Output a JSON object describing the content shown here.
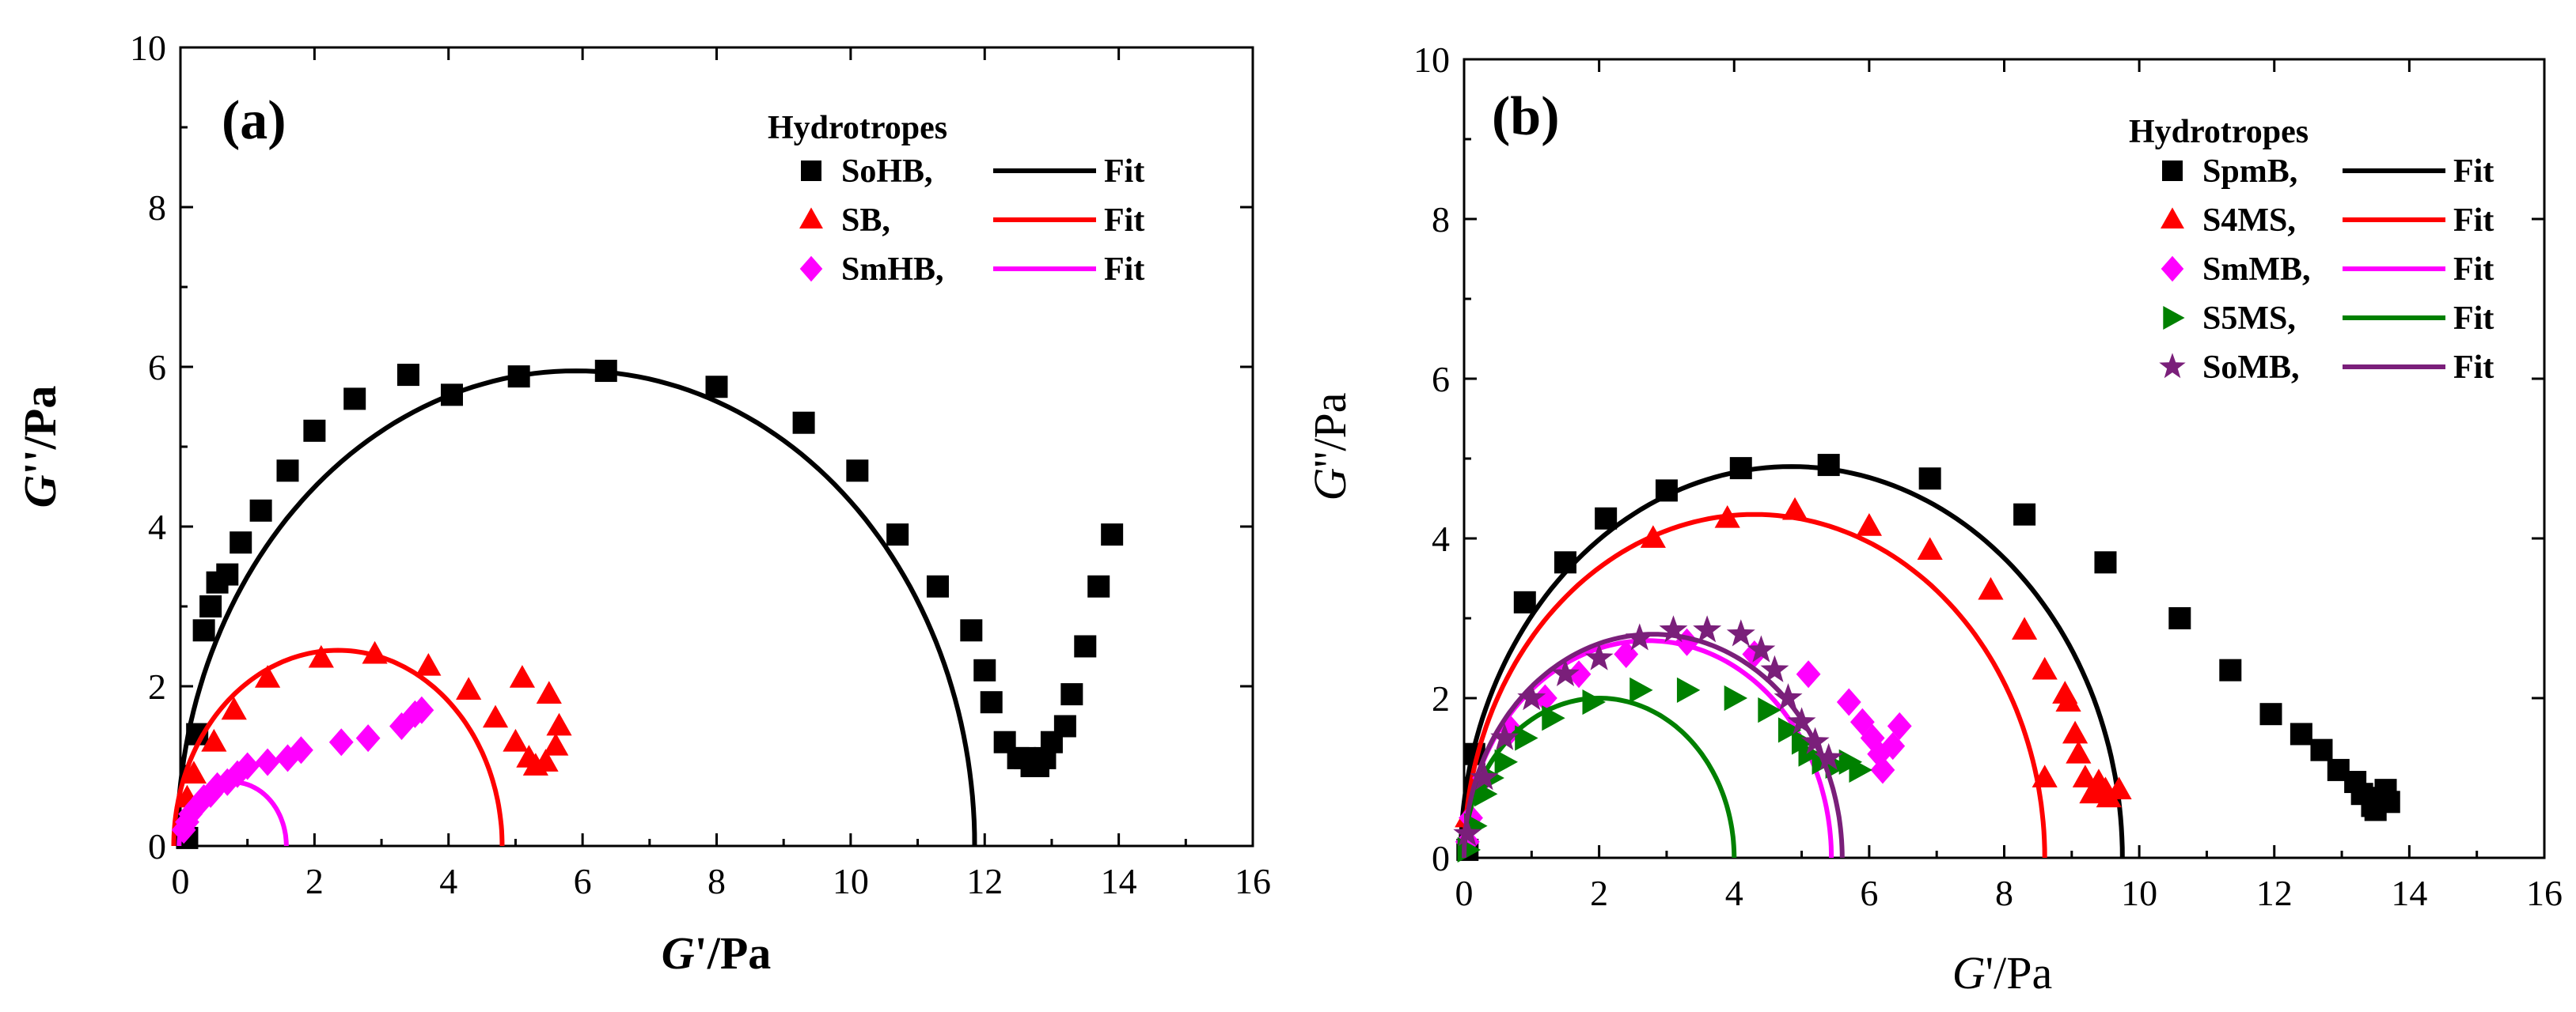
{
  "chart_data": [
    {
      "panel": "(a)",
      "type": "scatter",
      "xlabel": {
        "italic": "G",
        "rest": "'/Pa"
      },
      "ylabel": {
        "italic": "G",
        "rest": "''/Pa"
      },
      "xlim": [
        0,
        16
      ],
      "ylim": [
        0,
        10
      ],
      "xticks": [
        "0",
        "2",
        "4",
        "6",
        "8",
        "10",
        "12",
        "14",
        "16"
      ],
      "yticks": [
        "0",
        "2",
        "4",
        "6",
        "8",
        "10"
      ],
      "legend_title": "Hydrotropes",
      "legend_position": "top-right",
      "fit_label": "Fit",
      "series": [
        {
          "name": "SoHB,",
          "marker": "square",
          "color": "#000000",
          "points": [
            [
              0.1,
              0.1
            ],
            [
              0.25,
              1.4
            ],
            [
              0.35,
              2.7
            ],
            [
              0.45,
              3.0
            ],
            [
              0.55,
              3.3
            ],
            [
              0.7,
              3.4
            ],
            [
              0.9,
              3.8
            ],
            [
              1.2,
              4.2
            ],
            [
              1.6,
              4.7
            ],
            [
              2.0,
              5.2
            ],
            [
              2.6,
              5.6
            ],
            [
              3.4,
              5.9
            ],
            [
              6.35,
              5.95
            ],
            [
              8.0,
              5.75
            ],
            [
              9.3,
              5.3
            ],
            [
              10.1,
              4.7
            ],
            [
              10.7,
              3.9
            ],
            [
              11.3,
              3.25
            ],
            [
              11.8,
              2.7
            ],
            [
              12.0,
              2.2
            ],
            [
              12.1,
              1.8
            ],
            [
              12.3,
              1.3
            ],
            [
              12.5,
              1.1
            ],
            [
              12.6,
              1.1
            ],
            [
              12.7,
              1.0
            ],
            [
              12.8,
              1.0
            ],
            [
              12.9,
              1.1
            ],
            [
              13.0,
              1.3
            ],
            [
              13.2,
              1.5
            ],
            [
              13.3,
              1.9
            ],
            [
              13.5,
              2.5
            ],
            [
              13.7,
              3.25
            ],
            [
              13.9,
              3.9
            ],
            [
              4.05,
              5.65
            ],
            [
              5.05,
              5.88
            ]
          ],
          "fit": {
            "center": 5.9,
            "radius": 5.95,
            "color": "#000000"
          }
        },
        {
          "name": "SB,",
          "marker": "triangle",
          "color": "#ff0000",
          "points": [
            [
              0.1,
              0.6
            ],
            [
              0.2,
              0.9
            ],
            [
              0.5,
              1.3
            ],
            [
              0.8,
              1.7
            ],
            [
              1.3,
              2.1
            ],
            [
              2.1,
              2.35
            ],
            [
              2.9,
              2.4
            ],
            [
              3.7,
              2.25
            ],
            [
              4.3,
              1.95
            ],
            [
              4.7,
              1.6
            ],
            [
              5.0,
              1.3
            ],
            [
              5.1,
              2.1
            ],
            [
              5.2,
              1.1
            ],
            [
              5.3,
              1.0
            ],
            [
              5.45,
              1.05
            ],
            [
              5.5,
              1.9
            ],
            [
              5.6,
              1.25
            ],
            [
              5.65,
              1.5
            ]
          ],
          "fit": {
            "center": 2.35,
            "radius": 2.45,
            "color": "#ff0000"
          }
        },
        {
          "name": "SmHB,",
          "marker": "diamond",
          "color": "#ff00ff",
          "points": [
            [
              0.05,
              0.2
            ],
            [
              0.1,
              0.3
            ],
            [
              0.15,
              0.4
            ],
            [
              0.25,
              0.5
            ],
            [
              0.35,
              0.6
            ],
            [
              0.45,
              0.65
            ],
            [
              0.55,
              0.75
            ],
            [
              0.7,
              0.8
            ],
            [
              0.85,
              0.9
            ],
            [
              1.0,
              1.0
            ],
            [
              1.3,
              1.05
            ],
            [
              1.6,
              1.1
            ],
            [
              1.8,
              1.2
            ],
            [
              2.4,
              1.3
            ],
            [
              2.8,
              1.35
            ],
            [
              3.3,
              1.5
            ],
            [
              3.5,
              1.65
            ],
            [
              3.6,
              1.7
            ]
          ],
          "fit": {
            "center": 0.78,
            "radius": 0.8,
            "color": "#ff00ff"
          }
        }
      ]
    },
    {
      "panel": "(b)",
      "type": "scatter",
      "xlabel": {
        "italic": "G",
        "rest": "'/Pa"
      },
      "ylabel": {
        "italic": "G",
        "rest": "''/Pa"
      },
      "xlim": [
        0,
        16
      ],
      "ylim": [
        0,
        10
      ],
      "xticks": [
        "0",
        "2",
        "4",
        "6",
        "8",
        "10",
        "12",
        "14",
        "16"
      ],
      "yticks": [
        "0",
        "2",
        "4",
        "6",
        "8",
        "10"
      ],
      "legend_title": "Hydrotropes",
      "legend_position": "top-right",
      "fit_label": "Fit",
      "series": [
        {
          "name": "SpmB,",
          "marker": "square",
          "color": "#000000",
          "points": [
            [
              0.05,
              0.1
            ],
            [
              0.15,
              1.3
            ],
            [
              0.9,
              3.2
            ],
            [
              1.5,
              3.7
            ],
            [
              2.1,
              4.25
            ],
            [
              3.0,
              4.6
            ],
            [
              4.1,
              4.88
            ],
            [
              5.4,
              4.92
            ],
            [
              6.9,
              4.75
            ],
            [
              8.3,
              4.3
            ],
            [
              9.5,
              3.7
            ],
            [
              10.6,
              3.0
            ],
            [
              11.35,
              2.35
            ],
            [
              11.95,
              1.8
            ],
            [
              12.4,
              1.55
            ],
            [
              12.7,
              1.35
            ],
            [
              12.95,
              1.1
            ],
            [
              13.2,
              0.95
            ],
            [
              13.3,
              0.8
            ],
            [
              13.45,
              0.65
            ],
            [
              13.5,
              0.6
            ],
            [
              13.55,
              0.75
            ],
            [
              13.65,
              0.85
            ],
            [
              13.7,
              0.7
            ]
          ],
          "fit": {
            "center": 4.85,
            "radius": 4.9,
            "color": "#000000"
          }
        },
        {
          "name": "S4MS,",
          "marker": "triangle",
          "color": "#ff0000",
          "points": [
            [
              0.05,
              0.5
            ],
            [
              2.8,
              4.0
            ],
            [
              3.9,
              4.25
            ],
            [
              4.9,
              4.35
            ],
            [
              6.0,
              4.15
            ],
            [
              6.9,
              3.85
            ],
            [
              7.8,
              3.35
            ],
            [
              8.3,
              2.85
            ],
            [
              8.6,
              2.35
            ],
            [
              8.9,
              2.05
            ],
            [
              8.95,
              1.95
            ],
            [
              9.05,
              1.55
            ],
            [
              9.1,
              1.3
            ],
            [
              9.2,
              1.0
            ],
            [
              9.3,
              0.8
            ],
            [
              9.4,
              0.95
            ],
            [
              9.5,
              0.85
            ],
            [
              9.55,
              0.75
            ],
            [
              9.7,
              0.85
            ],
            [
              8.6,
              1.0
            ]
          ],
          "fit": {
            "center": 4.3,
            "radius": 4.3,
            "color": "#ff0000"
          }
        },
        {
          "name": "SmMB,",
          "marker": "diamond",
          "color": "#ff00ff",
          "points": [
            [
              0.05,
              0.2
            ],
            [
              0.1,
              0.5
            ],
            [
              0.3,
              1.0
            ],
            [
              0.7,
              1.6
            ],
            [
              1.2,
              2.0
            ],
            [
              1.7,
              2.3
            ],
            [
              2.4,
              2.55
            ],
            [
              3.3,
              2.7
            ],
            [
              4.3,
              2.55
            ],
            [
              5.1,
              2.3
            ],
            [
              5.7,
              1.95
            ],
            [
              5.9,
              1.7
            ],
            [
              6.05,
              1.5
            ],
            [
              6.15,
              1.3
            ],
            [
              6.2,
              1.1
            ],
            [
              6.35,
              1.4
            ],
            [
              6.45,
              1.65
            ]
          ],
          "fit": {
            "center": 2.72,
            "radius": 2.72,
            "color": "#ff00ff"
          }
        },
        {
          "name": "S5MS,",
          "marker": "triangle-right",
          "color": "#008000",
          "points": [
            [
              0.05,
              0.1
            ],
            [
              0.15,
              0.4
            ],
            [
              0.3,
              0.8
            ],
            [
              0.4,
              1.0
            ],
            [
              0.6,
              1.2
            ],
            [
              0.9,
              1.5
            ],
            [
              1.3,
              1.75
            ],
            [
              1.9,
              1.95
            ],
            [
              2.6,
              2.1
            ],
            [
              3.3,
              2.1
            ],
            [
              4.0,
              2.0
            ],
            [
              4.5,
              1.85
            ],
            [
              4.8,
              1.6
            ],
            [
              5.0,
              1.45
            ],
            [
              5.1,
              1.3
            ],
            [
              5.3,
              1.2
            ],
            [
              5.5,
              1.15
            ],
            [
              5.7,
              1.2
            ],
            [
              5.85,
              1.1
            ]
          ],
          "fit": {
            "center": 2.0,
            "radius": 2.0,
            "color": "#008000"
          }
        },
        {
          "name": "SoMB,",
          "marker": "star",
          "color": "#7a1f7a",
          "points": [
            [
              0.05,
              0.3
            ],
            [
              0.3,
              1.0
            ],
            [
              0.6,
              1.5
            ],
            [
              1.0,
              2.0
            ],
            [
              1.5,
              2.3
            ],
            [
              2.0,
              2.5
            ],
            [
              2.6,
              2.75
            ],
            [
              3.1,
              2.85
            ],
            [
              3.6,
              2.85
            ],
            [
              4.1,
              2.8
            ],
            [
              4.4,
              2.6
            ],
            [
              4.6,
              2.35
            ],
            [
              4.8,
              2.0
            ],
            [
              5.0,
              1.7
            ],
            [
              5.2,
              1.45
            ],
            [
              5.4,
              1.25
            ]
          ],
          "fit": {
            "center": 2.8,
            "radius": 2.8,
            "color": "#7a1f7a"
          }
        }
      ]
    }
  ]
}
